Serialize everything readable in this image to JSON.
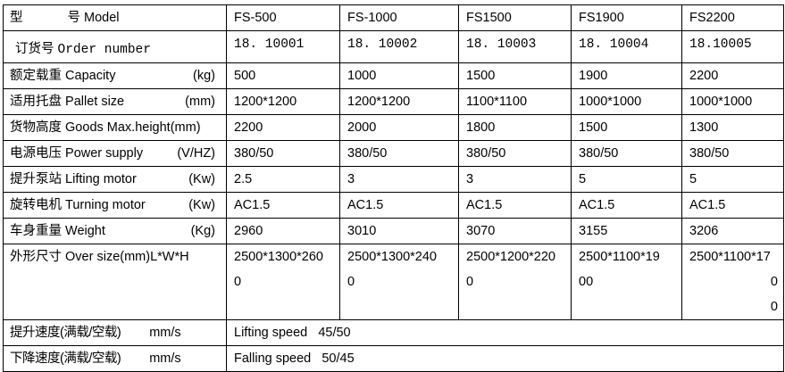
{
  "rows": [
    {
      "label_cn": "型",
      "label_cn2": "号",
      "label_en": "Model",
      "unit": "",
      "values": [
        "FS-500",
        "FS-1000",
        "FS1500",
        "FS1900",
        "FS2200"
      ]
    },
    {
      "label_cn": "订货号",
      "label_en": "Order number",
      "unit": "",
      "values": [
        "18. 10001",
        "18. 10002",
        "18. 10003",
        "18. 10004",
        "18.10005"
      ]
    },
    {
      "label_cn": "额定载重",
      "label_en": "Capacity",
      "unit": "(kg)",
      "values": [
        "500",
        "1000",
        "1500",
        "1900",
        "2200"
      ]
    },
    {
      "label_cn": "适用托盘",
      "label_en": "Pallet size",
      "unit": "(mm)",
      "values": [
        "1200*1200",
        "1200*1200",
        "1100*1100",
        "1000*1000",
        "1000*1000"
      ]
    },
    {
      "label_cn": "货物高度",
      "label_en": "Goods Max.height(mm)",
      "unit": "",
      "values": [
        "2200",
        "2000",
        "1800",
        "1500",
        "1300"
      ]
    },
    {
      "label_cn": "电源电压",
      "label_en": "Power supply",
      "unit": "(V/HZ)",
      "values": [
        "380/50",
        "380/50",
        "380/50",
        "380/50",
        "380/50"
      ]
    },
    {
      "label_cn": "提升泵站",
      "label_en": "Lifting motor",
      "unit": "(Kw)",
      "values": [
        "2.5",
        "3",
        "3",
        "5",
        "5"
      ]
    },
    {
      "label_cn": "旋转电机",
      "label_en": "Turning motor",
      "unit": "(Kw)",
      "values": [
        "AC1.5",
        "AC1.5",
        "AC1.5",
        "AC1.5",
        "AC1.5"
      ]
    },
    {
      "label_cn": "车身重量",
      "label_en": "Weight",
      "unit": "(Kg)",
      "values": [
        "2960",
        "3010",
        "3070",
        "3155",
        "3206"
      ]
    }
  ],
  "oversize": {
    "label_cn": "外形尺寸",
    "label_en": "Over size(mm)L*W*H",
    "values": [
      [
        "2500*1300*260",
        "0"
      ],
      [
        "2500*1300*240",
        "0"
      ],
      [
        "2500*1200*220",
        "0"
      ],
      [
        "2500*1100*19",
        "00"
      ],
      [
        "2500*1100*17",
        "0",
        "0"
      ]
    ]
  },
  "speeds": [
    {
      "label_cn": "提升速度(满载/空载)",
      "unit": "mm/s",
      "text": "Lifting speed",
      "value": "45/50"
    },
    {
      "label_cn": "下降速度(满载/空载)",
      "unit": "mm/s",
      "text": "Falling speed",
      "value": "50/45"
    }
  ]
}
